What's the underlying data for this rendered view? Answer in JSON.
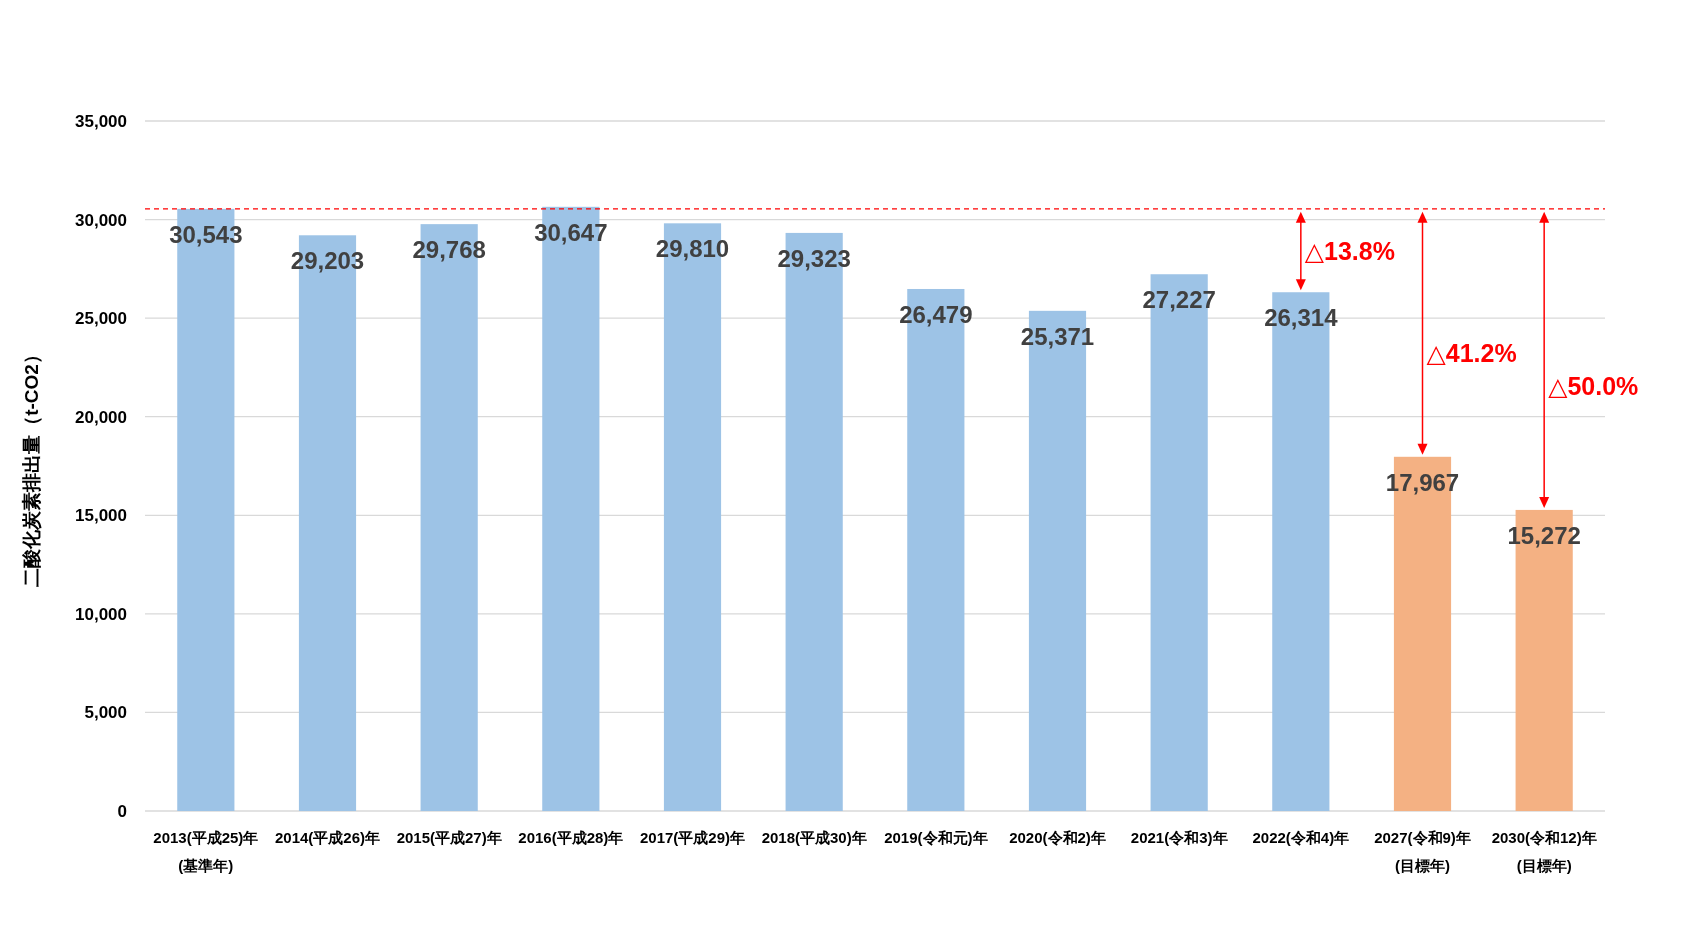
{
  "chart_data": {
    "type": "bar",
    "ylabel": "二酸化炭素排出量（t-CO2）",
    "categories": [
      "2013(平成25)年\n(基準年)",
      "2014(平成26)年",
      "2015(平成27)年",
      "2016(平成28)年",
      "2017(平成29)年",
      "2018(平成30)年",
      "2019(令和元)年",
      "2020(令和2)年",
      "2021(令和3)年",
      "2022(令和4)年",
      "2027(令和9)年\n(目標年)",
      "2030(令和12)年\n(目標年)"
    ],
    "values": [
      30543,
      29203,
      29768,
      30647,
      29810,
      29323,
      26479,
      25371,
      27227,
      26314,
      17967,
      15272
    ],
    "colors": [
      "#9dc3e6",
      "#9dc3e6",
      "#9dc3e6",
      "#9dc3e6",
      "#9dc3e6",
      "#9dc3e6",
      "#9dc3e6",
      "#9dc3e6",
      "#9dc3e6",
      "#9dc3e6",
      "#f4b183",
      "#f4b183"
    ],
    "ylim": [
      0,
      35000
    ],
    "yticks": [
      {
        "value": 0,
        "label": "0"
      },
      {
        "value": 5000,
        "label": "5,000"
      },
      {
        "value": 10000,
        "label": "10,000"
      },
      {
        "value": 15000,
        "label": "15,000"
      },
      {
        "value": 20000,
        "label": "20,000"
      },
      {
        "value": 25000,
        "label": "25,000"
      },
      {
        "value": 30000,
        "label": "30,000"
      },
      {
        "value": 35000,
        "label": "35,000"
      }
    ],
    "grid": "y",
    "data_labels": true,
    "value_labels": [
      "30,543",
      "29,203",
      "29,768",
      "30,647",
      "29,810",
      "29,323",
      "26,479",
      "25,371",
      "27,227",
      "26,314",
      "17,967",
      "15,272"
    ],
    "ref_lines": [
      {
        "axis": "y",
        "value": 30543,
        "color": "#ff0000",
        "line_style": "dashed"
      }
    ],
    "annotations": [
      "△13.8%",
      "△41.2%",
      "△50.0%"
    ]
  }
}
